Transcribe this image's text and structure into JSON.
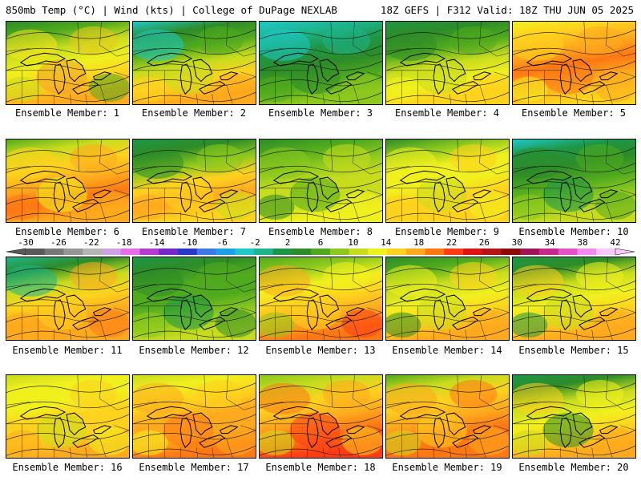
{
  "header": {
    "left": "850mb Temp (°C) | Wind (kts) | College of DuPage NEXLAB",
    "right": "18Z GEFS | F312 Valid: 18Z THU JUN 05 2025"
  },
  "colorbar": {
    "labels": [
      "-30",
      "-26",
      "-22",
      "-18",
      "-14",
      "-10",
      "-6",
      "-2",
      "2",
      "6",
      "10",
      "14",
      "18",
      "22",
      "26",
      "30",
      "34",
      "38",
      "42"
    ],
    "colors": [
      "#5a5a5a",
      "#787878",
      "#969696",
      "#b4b4b4",
      "#d2a0e6",
      "#e66ee6",
      "#b43cd2",
      "#7828c8",
      "#2838c8",
      "#3c78e6",
      "#1ea0e6",
      "#1ec8c8",
      "#1eb48c",
      "#1e9646",
      "#2d8c28",
      "#50aa1e",
      "#8cc81e",
      "#c8dc1e",
      "#f0f01e",
      "#ffd21e",
      "#ffaa1e",
      "#ff7814",
      "#ff3c14",
      "#dc1414",
      "#b41414",
      "#8c0a0a",
      "#a0145a",
      "#c8288c",
      "#e650c8",
      "#f08cf0",
      "#fac8fa"
    ]
  },
  "members": [
    {
      "label": "Ensemble Member: 1",
      "palette": [
        "#f5e61e",
        "#e6c81e",
        "#f0a028",
        "#c8dc1e",
        "#50aa1e"
      ],
      "colors": [
        "#2d8c28",
        "#50aa1e",
        "#c8dc1e",
        "#f0f01e",
        "#ffd21e",
        "#ffaa1e"
      ]
    },
    {
      "label": "Ensemble Member: 2",
      "palette": [
        "#1ec8c8",
        "#50aa1e",
        "#c8dc1e",
        "#ffd21e",
        "#ffaa1e"
      ],
      "colors": [
        "#1ec8c8",
        "#2d8c28",
        "#50aa1e",
        "#c8dc1e",
        "#ffd21e",
        "#ffaa1e"
      ]
    },
    {
      "label": "Ensemble Member: 3",
      "palette": [
        "#1ec8c8",
        "#1eb48c",
        "#2d8c28",
        "#50aa1e",
        "#8cc81e"
      ],
      "colors": [
        "#1ec8c8",
        "#1eb48c",
        "#1e9646",
        "#2d8c28",
        "#50aa1e",
        "#8cc81e"
      ]
    },
    {
      "label": "Ensemble Member: 4",
      "palette": [
        "#2d8c28",
        "#50aa1e",
        "#c8dc1e",
        "#f0f01e",
        "#ffd21e"
      ],
      "colors": [
        "#1e9646",
        "#2d8c28",
        "#50aa1e",
        "#c8dc1e",
        "#f0f01e",
        "#ffd21e"
      ]
    },
    {
      "label": "Ensemble Member: 5",
      "palette": [
        "#ffd21e",
        "#ffaa1e",
        "#ff7814",
        "#f0f01e",
        "#ffaa1e"
      ],
      "colors": [
        "#f0f01e",
        "#ffd21e",
        "#ffaa1e",
        "#ff7814",
        "#ffaa1e",
        "#ffd21e"
      ]
    },
    {
      "label": "Ensemble Member: 6",
      "palette": [
        "#ffd21e",
        "#ffaa1e",
        "#f0f01e",
        "#ff7814",
        "#ffaa1e"
      ],
      "colors": [
        "#50aa1e",
        "#c8dc1e",
        "#ffd21e",
        "#ffaa1e",
        "#ff7814",
        "#ffaa1e"
      ]
    },
    {
      "label": "Ensemble Member: 7",
      "palette": [
        "#2d8c28",
        "#8cc81e",
        "#ffd21e",
        "#ffaa1e",
        "#c8dc1e"
      ],
      "colors": [
        "#1e9646",
        "#2d8c28",
        "#8cc81e",
        "#ffd21e",
        "#ffaa1e",
        "#ffd21e"
      ]
    },
    {
      "label": "Ensemble Member: 8",
      "palette": [
        "#8cc81e",
        "#c8dc1e",
        "#50aa1e",
        "#2d8c28",
        "#f0f01e"
      ],
      "colors": [
        "#2d8c28",
        "#50aa1e",
        "#8cc81e",
        "#c8dc1e",
        "#c8dc1e",
        "#f0f01e"
      ]
    },
    {
      "label": "Ensemble Member: 9",
      "palette": [
        "#f0f01e",
        "#ffd21e",
        "#c8dc1e",
        "#ffd21e",
        "#f0f01e"
      ],
      "colors": [
        "#2d8c28",
        "#8cc81e",
        "#f0f01e",
        "#f0f01e",
        "#ffd21e",
        "#ffd21e"
      ]
    },
    {
      "label": "Ensemble Member: 10",
      "palette": [
        "#2d8c28",
        "#50aa1e",
        "#1e9646",
        "#8cc81e",
        "#50aa1e"
      ],
      "colors": [
        "#1ec8c8",
        "#1e9646",
        "#2d8c28",
        "#50aa1e",
        "#8cc81e",
        "#c8dc1e"
      ]
    },
    {
      "label": "Ensemble Member: 11",
      "palette": [
        "#1eb48c",
        "#ffaa1e",
        "#ffd21e",
        "#ffaa1e",
        "#ff7814"
      ],
      "colors": [
        "#1eb48c",
        "#2d8c28",
        "#c8dc1e",
        "#ffd21e",
        "#ffaa1e",
        "#ffaa1e"
      ]
    },
    {
      "label": "Ensemble Member: 12",
      "palette": [
        "#2d8c28",
        "#50aa1e",
        "#1e9646",
        "#8cc81e",
        "#2d8c28"
      ],
      "colors": [
        "#1e9646",
        "#2d8c28",
        "#50aa1e",
        "#50aa1e",
        "#8cc81e",
        "#c8dc1e"
      ]
    },
    {
      "label": "Ensemble Member: 13",
      "palette": [
        "#ffaa1e",
        "#f0f01e",
        "#ffd21e",
        "#8cc81e",
        "#ff3c14"
      ],
      "colors": [
        "#50aa1e",
        "#8cc81e",
        "#f0f01e",
        "#ffd21e",
        "#ffaa1e",
        "#ff7814"
      ]
    },
    {
      "label": "Ensemble Member: 14",
      "palette": [
        "#f0f01e",
        "#ffd21e",
        "#c8dc1e",
        "#2d8c28",
        "#ffaa1e"
      ],
      "colors": [
        "#2d8c28",
        "#50aa1e",
        "#c8dc1e",
        "#f0f01e",
        "#ffd21e",
        "#ffaa1e"
      ]
    },
    {
      "label": "Ensemble Member: 15",
      "palette": [
        "#ffd21e",
        "#f0f01e",
        "#c8dc1e",
        "#1e9646",
        "#ffaa1e"
      ],
      "colors": [
        "#1e9646",
        "#2d8c28",
        "#c8dc1e",
        "#f0f01e",
        "#ffd21e",
        "#ffaa1e"
      ]
    },
    {
      "label": "Ensemble Member: 16",
      "palette": [
        "#f0f01e",
        "#ffd21e",
        "#c8dc1e",
        "#ffaa1e",
        "#f0f01e"
      ],
      "colors": [
        "#c8dc1e",
        "#f0f01e",
        "#f0f01e",
        "#ffd21e",
        "#ffd21e",
        "#ffaa1e"
      ]
    },
    {
      "label": "Ensemble Member: 17",
      "palette": [
        "#ffaa1e",
        "#ffd21e",
        "#ff7814",
        "#f0f01e",
        "#ffaa1e"
      ],
      "colors": [
        "#c8dc1e",
        "#f0f01e",
        "#ffd21e",
        "#ffaa1e",
        "#ffaa1e",
        "#ff7814"
      ]
    },
    {
      "label": "Ensemble Member: 18",
      "palette": [
        "#ff7814",
        "#ffaa1e",
        "#ff3c14",
        "#c8dc1e",
        "#ffd21e"
      ],
      "colors": [
        "#8cc81e",
        "#c8dc1e",
        "#ffd21e",
        "#ffaa1e",
        "#ff7814",
        "#ff3c14"
      ]
    },
    {
      "label": "Ensemble Member: 19",
      "palette": [
        "#ffaa1e",
        "#ff7814",
        "#ffd21e",
        "#c8dc1e",
        "#ffaa1e"
      ],
      "colors": [
        "#50aa1e",
        "#c8dc1e",
        "#ffd21e",
        "#ffaa1e",
        "#ff7814",
        "#ff7814"
      ]
    },
    {
      "label": "Ensemble Member: 20",
      "palette": [
        "#ffd21e",
        "#f0f01e",
        "#2d8c28",
        "#c8dc1e",
        "#ffaa1e"
      ],
      "colors": [
        "#1e9646",
        "#2d8c28",
        "#c8dc1e",
        "#f0f01e",
        "#ffd21e",
        "#ffaa1e"
      ]
    }
  ]
}
